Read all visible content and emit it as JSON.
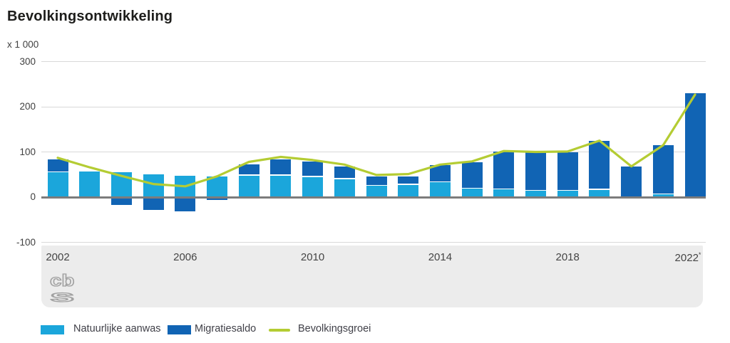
{
  "chart_data": {
    "type": "bar",
    "stacked": true,
    "title": "Bevolkingsontwikkeling",
    "unit": "x 1 000",
    "categories": [
      2002,
      2003,
      2004,
      2005,
      2006,
      2007,
      2008,
      2009,
      2010,
      2011,
      2012,
      2013,
      2014,
      2015,
      2016,
      2017,
      2018,
      2019,
      2020,
      2021,
      2022
    ],
    "series": [
      {
        "name": "Natuurlijke aanwas",
        "type": "bar",
        "color": "#1BA6DB",
        "values": [
          56,
          56,
          55,
          51,
          47,
          46,
          49,
          49,
          46,
          41,
          26,
          28,
          34,
          20,
          18,
          15,
          15,
          17,
          0,
          7,
          -3
        ]
      },
      {
        "name": "Migratiesaldo",
        "type": "bar",
        "color": "#1164B4",
        "values": [
          28,
          0,
          -18,
          -28,
          -31,
          -6,
          24,
          35,
          33,
          27,
          19,
          18,
          37,
          57,
          83,
          86,
          85,
          108,
          68,
          108,
          230
        ]
      },
      {
        "name": "Bevolkingsgroei",
        "type": "line",
        "color": "#B4CC33",
        "values": [
          87,
          66,
          47,
          29,
          24,
          46,
          78,
          89,
          82,
          72,
          49,
          51,
          72,
          79,
          102,
          100,
          101,
          125,
          68,
          115,
          227
        ]
      }
    ],
    "yticks": [
      300,
      200,
      100,
      0,
      -100
    ],
    "ylim": [
      -100,
      300
    ],
    "xticks": [
      {
        "value": 2002,
        "label": "2002",
        "marker": ""
      },
      {
        "value": 2006,
        "label": "2006",
        "marker": ""
      },
      {
        "value": 2010,
        "label": "2010",
        "marker": ""
      },
      {
        "value": 2014,
        "label": "2014",
        "marker": ""
      },
      {
        "value": 2018,
        "label": "2018",
        "marker": ""
      },
      {
        "value": 2022,
        "label": "2022",
        "marker": "*"
      }
    ],
    "grid": true,
    "legend_position": "bottom",
    "source_logo": "cbs",
    "colors": {
      "gridline": "#D9D9D9",
      "zero_line": "#7C7C7C",
      "axis_band": "#ECECEC",
      "axis_text": "#404040",
      "title_text": "#1D1D1B"
    }
  }
}
